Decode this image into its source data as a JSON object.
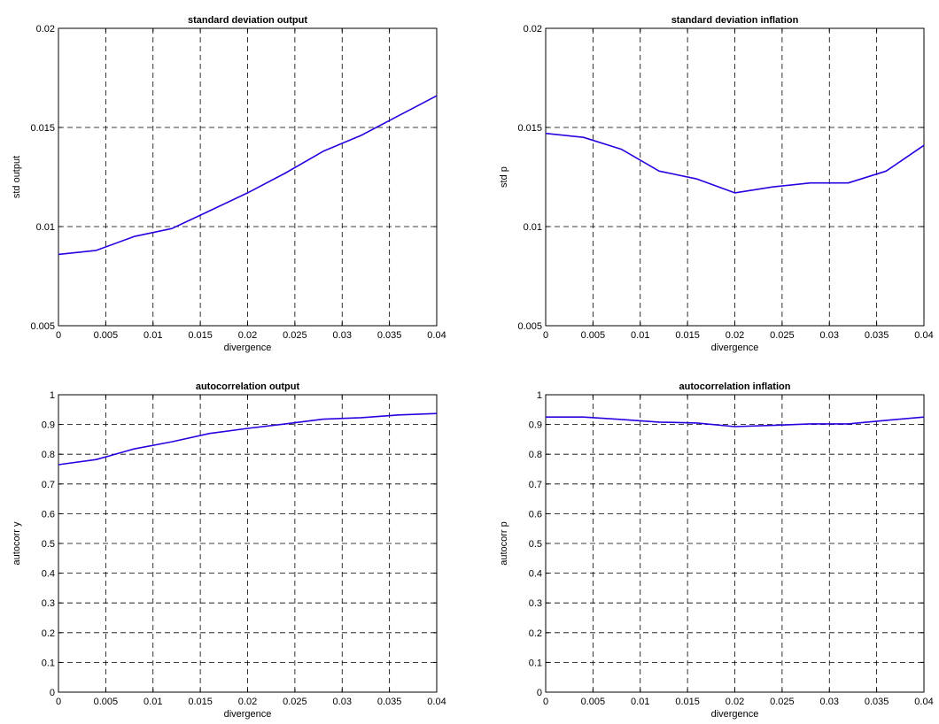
{
  "colors": {
    "series": "#2b00e0"
  },
  "chart_data": [
    {
      "type": "line",
      "title": "standard deviation output",
      "xlabel": "divergence",
      "ylabel": "std output",
      "xlim": [
        0,
        0.04
      ],
      "ylim": [
        0.005,
        0.02
      ],
      "grid": true,
      "xticks": [
        "0",
        "0.005",
        "0.01",
        "0.015",
        "0.02",
        "0.025",
        "0.03",
        "0.035",
        "0.04"
      ],
      "yticks": [
        "0.005",
        "0.01",
        "0.015",
        "0.02"
      ],
      "x": [
        0,
        0.004,
        0.008,
        0.012,
        0.016,
        0.02,
        0.024,
        0.028,
        0.032,
        0.036,
        0.04
      ],
      "y": [
        0.0086,
        0.0088,
        0.0095,
        0.0099,
        0.0108,
        0.0117,
        0.0127,
        0.0138,
        0.0146,
        0.0156,
        0.0166
      ]
    },
    {
      "type": "line",
      "title": "standard deviation inflation",
      "xlabel": "divergence",
      "ylabel": "std p",
      "xlim": [
        0,
        0.04
      ],
      "ylim": [
        0.005,
        0.02
      ],
      "grid": true,
      "xticks": [
        "0",
        "0.005",
        "0.01",
        "0.015",
        "0.02",
        "0.025",
        "0.03",
        "0.035",
        "0.04"
      ],
      "yticks": [
        "0.005",
        "0.01",
        "0.015",
        "0.02"
      ],
      "x": [
        0,
        0.004,
        0.008,
        0.012,
        0.016,
        0.02,
        0.024,
        0.028,
        0.032,
        0.036,
        0.04
      ],
      "y": [
        0.0147,
        0.0145,
        0.0139,
        0.0128,
        0.0124,
        0.0117,
        0.012,
        0.0122,
        0.0122,
        0.0128,
        0.0141
      ]
    },
    {
      "type": "line",
      "title": "autocorrelation output",
      "xlabel": "divergence",
      "ylabel": "autocorr y",
      "xlim": [
        0,
        0.04
      ],
      "ylim": [
        0,
        1
      ],
      "grid": true,
      "xticks": [
        "0",
        "0.005",
        "0.01",
        "0.015",
        "0.02",
        "0.025",
        "0.03",
        "0.035",
        "0.04"
      ],
      "yticks": [
        "0",
        "0.1",
        "0.2",
        "0.3",
        "0.4",
        "0.5",
        "0.6",
        "0.7",
        "0.8",
        "0.9",
        "1"
      ],
      "x": [
        0,
        0.004,
        0.008,
        0.012,
        0.016,
        0.02,
        0.024,
        0.028,
        0.032,
        0.036,
        0.04
      ],
      "y": [
        0.765,
        0.782,
        0.818,
        0.842,
        0.87,
        0.887,
        0.902,
        0.918,
        0.923,
        0.932,
        0.937
      ]
    },
    {
      "type": "line",
      "title": "autocorrelation inflation",
      "xlabel": "divergence",
      "ylabel": "autocorr p",
      "xlim": [
        0,
        0.04
      ],
      "ylim": [
        0,
        1
      ],
      "grid": true,
      "xticks": [
        "0",
        "0.005",
        "0.01",
        "0.015",
        "0.02",
        "0.025",
        "0.03",
        "0.035",
        "0.04"
      ],
      "yticks": [
        "0",
        "0.1",
        "0.2",
        "0.3",
        "0.4",
        "0.5",
        "0.6",
        "0.7",
        "0.8",
        "0.9",
        "1"
      ],
      "x": [
        0,
        0.004,
        0.008,
        0.012,
        0.016,
        0.02,
        0.024,
        0.028,
        0.032,
        0.036,
        0.04
      ],
      "y": [
        0.925,
        0.925,
        0.917,
        0.908,
        0.905,
        0.893,
        0.897,
        0.902,
        0.902,
        0.914,
        0.925
      ]
    }
  ]
}
